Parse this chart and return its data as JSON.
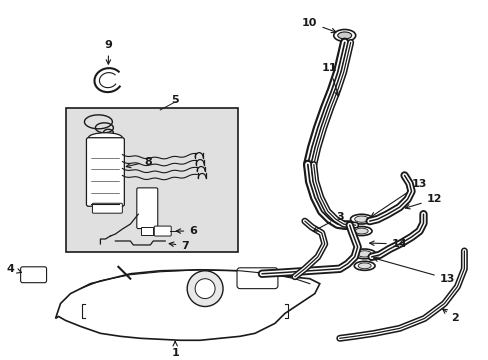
{
  "bg_color": "#ffffff",
  "line_color": "#1a1a1a",
  "inset_bg": "#e0e0e0",
  "figsize": [
    4.89,
    3.6
  ],
  "dpi": 100
}
